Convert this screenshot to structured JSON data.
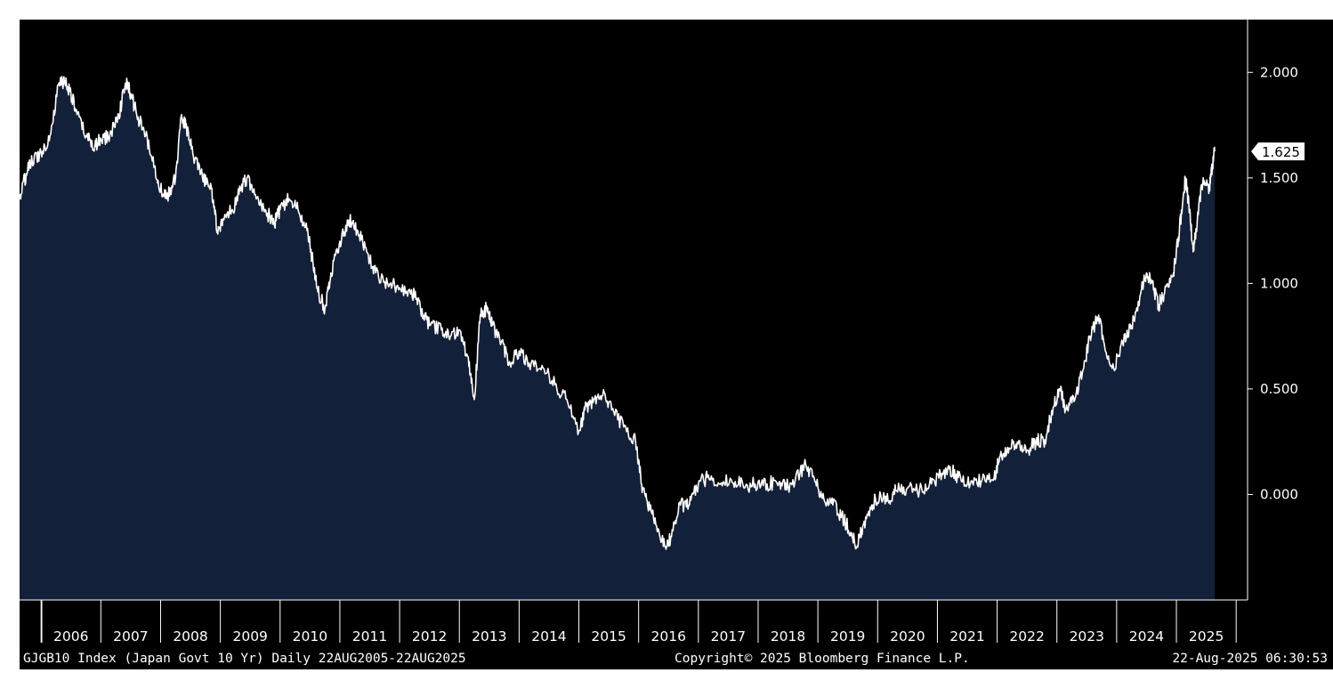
{
  "chart_data": {
    "type": "area",
    "title": "",
    "xlabel": "",
    "ylabel": "",
    "x_range": [
      "2005-08-22",
      "2025-08-22"
    ],
    "ylim": [
      -0.5,
      2.25
    ],
    "y_ticks": [
      2.0,
      1.5,
      1.0,
      0.5,
      0.0
    ],
    "y_tick_labels": [
      "2.000",
      "1.500",
      "1.000",
      "0.500",
      "0.000"
    ],
    "x_tick_labels": [
      "2006",
      "2007",
      "2008",
      "2009",
      "2010",
      "2011",
      "2012",
      "2013",
      "2014",
      "2015",
      "2016",
      "2017",
      "2018",
      "2019",
      "2020",
      "2021",
      "2022",
      "2023",
      "2024",
      "2025"
    ],
    "last_value_label": "1.625",
    "grid": false,
    "colors": {
      "background": "#000000",
      "area_fill": "#13203a",
      "line": "#ffffff",
      "axis": "#ffffff",
      "last_value_tag_bg": "#ffffff",
      "last_value_tag_text": "#000000"
    },
    "series": [
      {
        "points": [
          [
            2005.64,
            1.4
          ],
          [
            2005.75,
            1.52
          ],
          [
            2005.85,
            1.58
          ],
          [
            2006.0,
            1.62
          ],
          [
            2006.15,
            1.7
          ],
          [
            2006.3,
            1.95
          ],
          [
            2006.4,
            1.96
          ],
          [
            2006.5,
            1.9
          ],
          [
            2006.6,
            1.8
          ],
          [
            2006.75,
            1.7
          ],
          [
            2006.9,
            1.65
          ],
          [
            2007.0,
            1.68
          ],
          [
            2007.15,
            1.7
          ],
          [
            2007.3,
            1.8
          ],
          [
            2007.42,
            1.95
          ],
          [
            2007.5,
            1.9
          ],
          [
            2007.6,
            1.8
          ],
          [
            2007.75,
            1.7
          ],
          [
            2007.9,
            1.55
          ],
          [
            2008.0,
            1.45
          ],
          [
            2008.1,
            1.4
          ],
          [
            2008.25,
            1.5
          ],
          [
            2008.35,
            1.8
          ],
          [
            2008.42,
            1.75
          ],
          [
            2008.55,
            1.6
          ],
          [
            2008.7,
            1.5
          ],
          [
            2008.85,
            1.45
          ],
          [
            2008.95,
            1.25
          ],
          [
            2009.05,
            1.3
          ],
          [
            2009.2,
            1.35
          ],
          [
            2009.35,
            1.45
          ],
          [
            2009.45,
            1.5
          ],
          [
            2009.6,
            1.4
          ],
          [
            2009.75,
            1.35
          ],
          [
            2009.9,
            1.28
          ],
          [
            2010.0,
            1.35
          ],
          [
            2010.15,
            1.4
          ],
          [
            2010.3,
            1.35
          ],
          [
            2010.45,
            1.25
          ],
          [
            2010.55,
            1.1
          ],
          [
            2010.65,
            0.95
          ],
          [
            2010.75,
            0.88
          ],
          [
            2010.85,
            1.05
          ],
          [
            2011.0,
            1.2
          ],
          [
            2011.15,
            1.3
          ],
          [
            2011.3,
            1.25
          ],
          [
            2011.45,
            1.15
          ],
          [
            2011.6,
            1.05
          ],
          [
            2011.8,
            1.0
          ],
          [
            2012.0,
            0.98
          ],
          [
            2012.2,
            0.97
          ],
          [
            2012.35,
            0.88
          ],
          [
            2012.5,
            0.8
          ],
          [
            2012.7,
            0.78
          ],
          [
            2012.85,
            0.75
          ],
          [
            2013.0,
            0.78
          ],
          [
            2013.15,
            0.65
          ],
          [
            2013.25,
            0.45
          ],
          [
            2013.35,
            0.85
          ],
          [
            2013.45,
            0.88
          ],
          [
            2013.55,
            0.8
          ],
          [
            2013.7,
            0.72
          ],
          [
            2013.85,
            0.62
          ],
          [
            2014.0,
            0.68
          ],
          [
            2014.2,
            0.62
          ],
          [
            2014.4,
            0.6
          ],
          [
            2014.6,
            0.52
          ],
          [
            2014.8,
            0.45
          ],
          [
            2015.0,
            0.3
          ],
          [
            2015.1,
            0.4
          ],
          [
            2015.25,
            0.45
          ],
          [
            2015.4,
            0.47
          ],
          [
            2015.55,
            0.4
          ],
          [
            2015.75,
            0.32
          ],
          [
            2015.95,
            0.25
          ],
          [
            2016.05,
            0.05
          ],
          [
            2016.15,
            -0.05
          ],
          [
            2016.3,
            -0.15
          ],
          [
            2016.45,
            -0.25
          ],
          [
            2016.55,
            -0.2
          ],
          [
            2016.7,
            -0.05
          ],
          [
            2016.85,
            -0.05
          ],
          [
            2017.0,
            0.05
          ],
          [
            2017.15,
            0.08
          ],
          [
            2017.35,
            0.05
          ],
          [
            2017.55,
            0.07
          ],
          [
            2017.75,
            0.04
          ],
          [
            2017.95,
            0.05
          ],
          [
            2018.15,
            0.05
          ],
          [
            2018.35,
            0.06
          ],
          [
            2018.5,
            0.04
          ],
          [
            2018.7,
            0.1
          ],
          [
            2018.8,
            0.14
          ],
          [
            2018.95,
            0.06
          ],
          [
            2019.1,
            -0.02
          ],
          [
            2019.25,
            -0.05
          ],
          [
            2019.4,
            -0.1
          ],
          [
            2019.55,
            -0.18
          ],
          [
            2019.65,
            -0.25
          ],
          [
            2019.75,
            -0.15
          ],
          [
            2019.9,
            -0.05
          ],
          [
            2020.05,
            0.0
          ],
          [
            2020.2,
            -0.03
          ],
          [
            2020.3,
            0.02
          ],
          [
            2020.5,
            0.03
          ],
          [
            2020.7,
            0.02
          ],
          [
            2020.9,
            0.05
          ],
          [
            2021.05,
            0.1
          ],
          [
            2021.2,
            0.12
          ],
          [
            2021.35,
            0.08
          ],
          [
            2021.55,
            0.05
          ],
          [
            2021.75,
            0.07
          ],
          [
            2021.95,
            0.08
          ],
          [
            2022.05,
            0.18
          ],
          [
            2022.2,
            0.22
          ],
          [
            2022.35,
            0.24
          ],
          [
            2022.5,
            0.21
          ],
          [
            2022.65,
            0.25
          ],
          [
            2022.8,
            0.26
          ],
          [
            2022.95,
            0.42
          ],
          [
            2023.05,
            0.5
          ],
          [
            2023.15,
            0.4
          ],
          [
            2023.3,
            0.45
          ],
          [
            2023.45,
            0.6
          ],
          [
            2023.55,
            0.75
          ],
          [
            2023.7,
            0.85
          ],
          [
            2023.8,
            0.7
          ],
          [
            2023.95,
            0.6
          ],
          [
            2024.1,
            0.72
          ],
          [
            2024.25,
            0.8
          ],
          [
            2024.4,
            0.95
          ],
          [
            2024.5,
            1.05
          ],
          [
            2024.6,
            1.0
          ],
          [
            2024.7,
            0.9
          ],
          [
            2024.8,
            0.95
          ],
          [
            2024.95,
            1.05
          ],
          [
            2025.05,
            1.25
          ],
          [
            2025.15,
            1.5
          ],
          [
            2025.22,
            1.35
          ],
          [
            2025.28,
            1.15
          ],
          [
            2025.35,
            1.3
          ],
          [
            2025.45,
            1.5
          ],
          [
            2025.55,
            1.45
          ],
          [
            2025.6,
            1.55
          ],
          [
            2025.64,
            1.625
          ]
        ]
      }
    ]
  },
  "footer": {
    "left": "GJGB10 Index (Japan Govt 10 Yr)  Daily 22AUG2005-22AUG2025",
    "center": "Copyright© 2025 Bloomberg Finance L.P.",
    "right": "22-Aug-2025 06:30:53"
  }
}
